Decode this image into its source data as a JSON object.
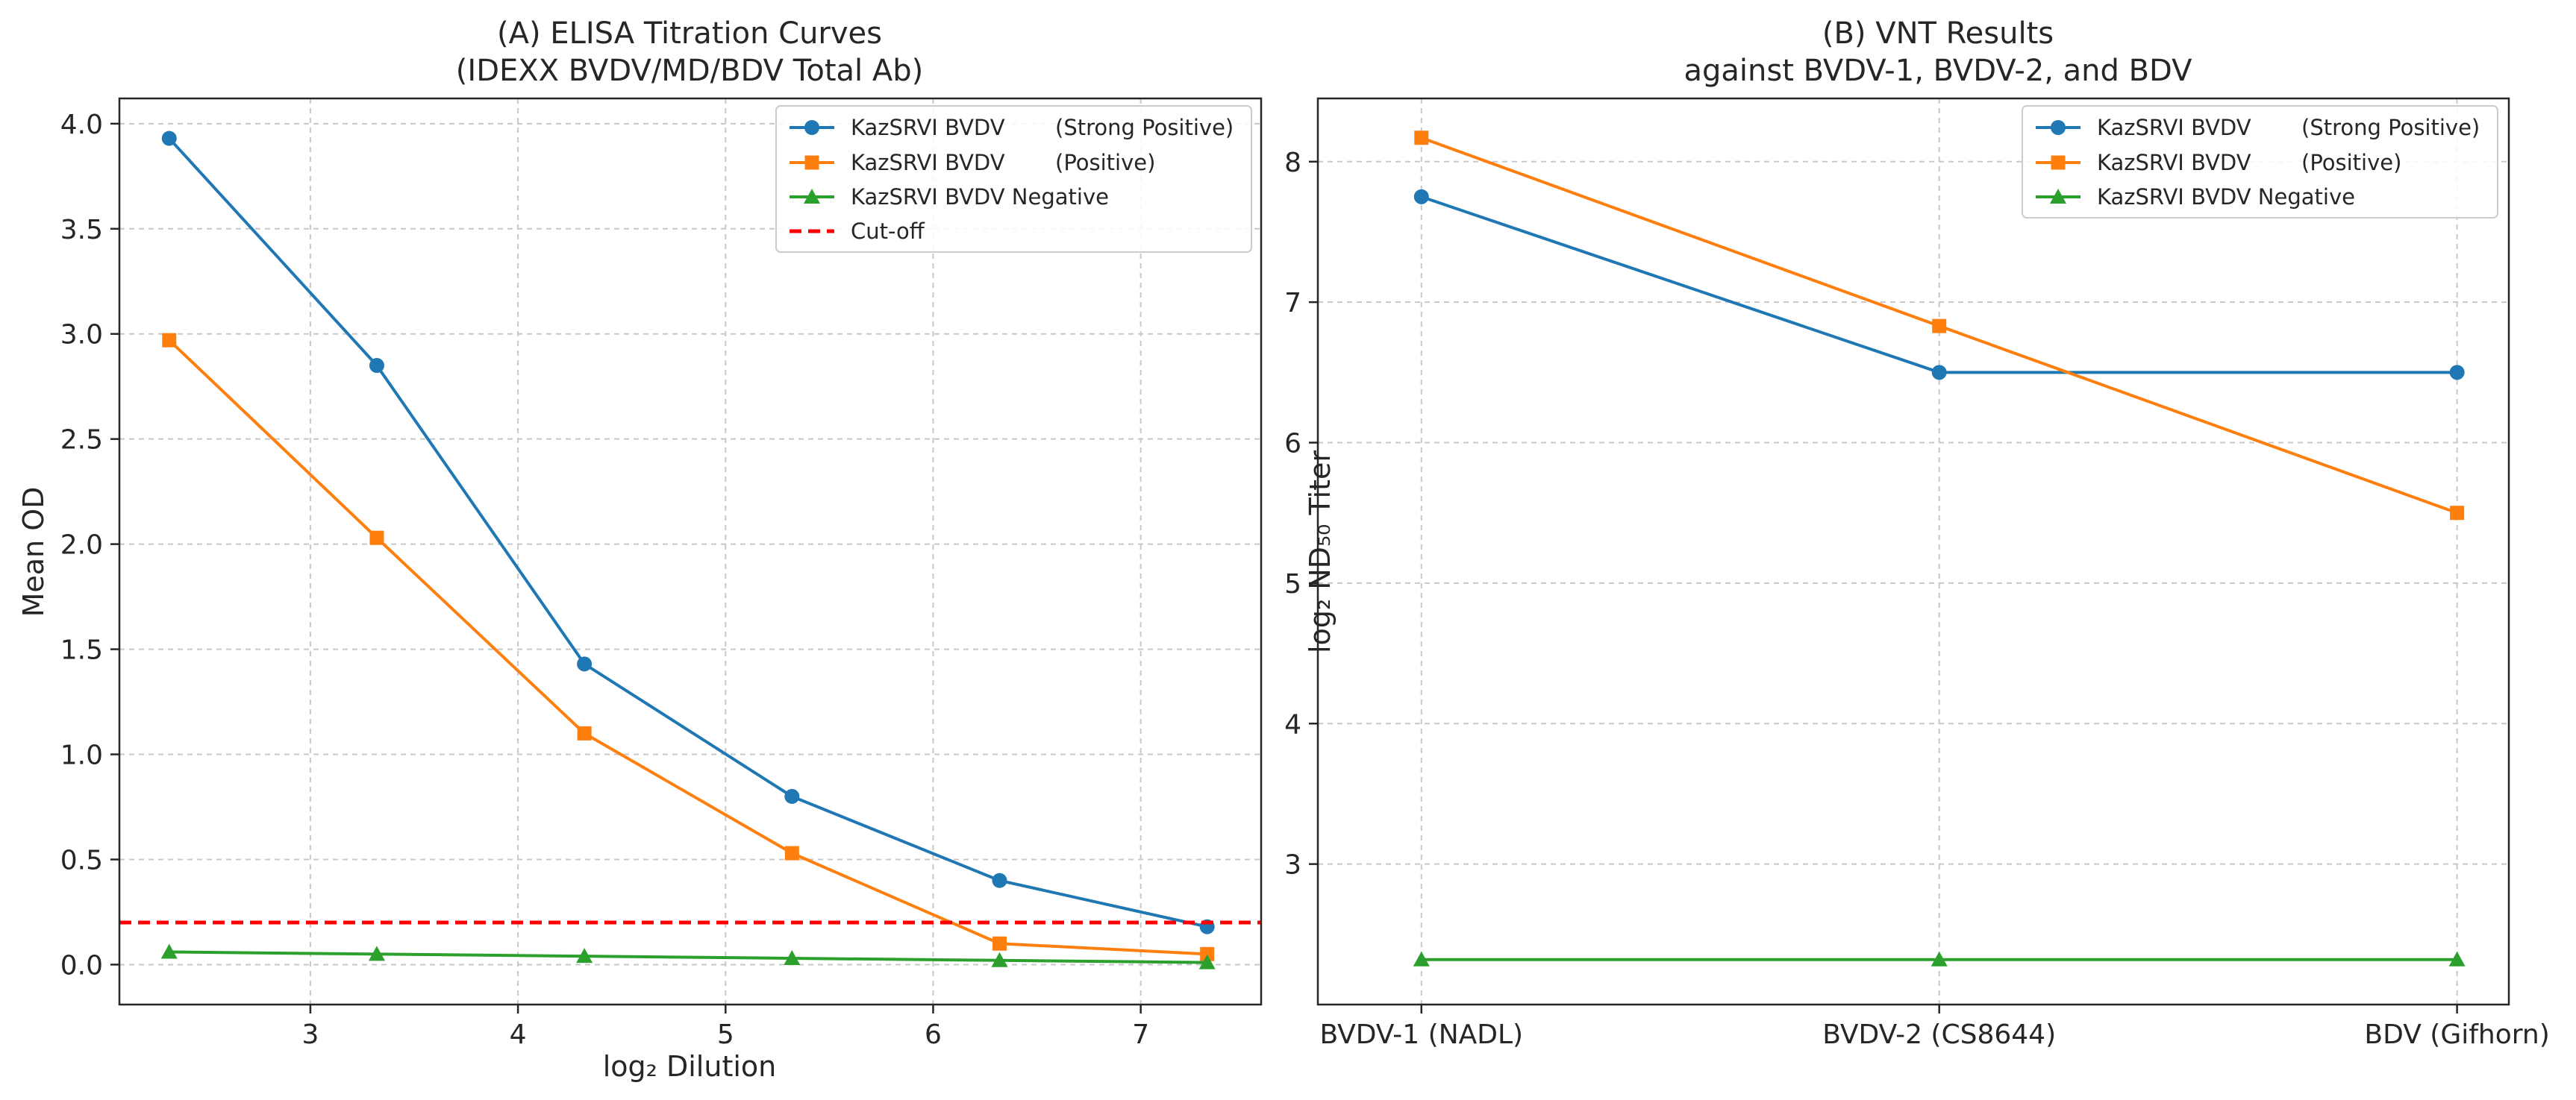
{
  "chart_data": [
    {
      "type": "line",
      "title_line1": "(A) ELISA Titration Curves",
      "title_line2": "(IDEXX BVDV/MD/BDV Total Ab)",
      "xlabel": "log₂ Dilution",
      "ylabel": "Mean OD",
      "xlim": [
        2.08,
        7.58
      ],
      "ylim": [
        -0.19,
        4.12
      ],
      "xticks": [
        3,
        4,
        5,
        6,
        7
      ],
      "yticks": [
        0.0,
        0.5,
        1.0,
        1.5,
        2.0,
        2.5,
        3.0,
        3.5,
        4.0
      ],
      "ytick_labels": [
        "0.0",
        "0.5",
        "1.0",
        "1.5",
        "2.0",
        "2.5",
        "3.0",
        "3.5",
        "4.0"
      ],
      "legend_position": "top-right",
      "x": [
        2.32,
        3.32,
        4.32,
        5.32,
        6.32,
        7.32
      ],
      "series": [
        {
          "name": "KazSRVI BVDV",
          "qualifier": "(Strong Positive)",
          "color": "#1f77b4",
          "marker": "circle",
          "values": [
            3.93,
            2.85,
            1.43,
            0.8,
            0.4,
            0.18
          ]
        },
        {
          "name": "KazSRVI BVDV",
          "qualifier": "(Positive)",
          "color": "#ff7f0e",
          "marker": "square",
          "values": [
            2.97,
            2.03,
            1.1,
            0.53,
            0.1,
            0.05
          ]
        },
        {
          "name": "KazSRVI BVDV Negative",
          "qualifier": "",
          "color": "#2ca02c",
          "marker": "triangle",
          "values": [
            0.06,
            0.05,
            0.04,
            0.03,
            0.02,
            0.01
          ]
        }
      ],
      "cutoff": {
        "name": "Cut-off",
        "value": 0.2,
        "color": "#ff0000"
      }
    },
    {
      "type": "line",
      "title_line1": "(B) VNT Results",
      "title_line2": "against BVDV-1, BVDV-2, and BDV",
      "xlabel": "",
      "ylabel": "log₂ ND₅₀ Titer",
      "categories": [
        "BVDV-1 (NADL)",
        "BVDV-2 (CS8644)",
        "BDV (Gifhorn)"
      ],
      "xlim": [
        -0.2,
        2.1
      ],
      "ylim": [
        2.0,
        8.45
      ],
      "yticks": [
        3,
        4,
        5,
        6,
        7,
        8
      ],
      "ytick_labels": [
        "3",
        "4",
        "5",
        "6",
        "7",
        "8"
      ],
      "legend_position": "top-right",
      "series": [
        {
          "name": "KazSRVI BVDV",
          "qualifier": "(Strong Positive)",
          "color": "#1f77b4",
          "marker": "circle",
          "values": [
            7.75,
            6.5,
            6.5
          ]
        },
        {
          "name": "KazSRVI BVDV",
          "qualifier": "(Positive)",
          "color": "#ff7f0e",
          "marker": "square",
          "values": [
            8.17,
            6.83,
            5.5
          ]
        },
        {
          "name": "KazSRVI BVDV Negative",
          "qualifier": "",
          "color": "#2ca02c",
          "marker": "triangle",
          "values": [
            2.32,
            2.32,
            2.32
          ]
        }
      ]
    }
  ]
}
